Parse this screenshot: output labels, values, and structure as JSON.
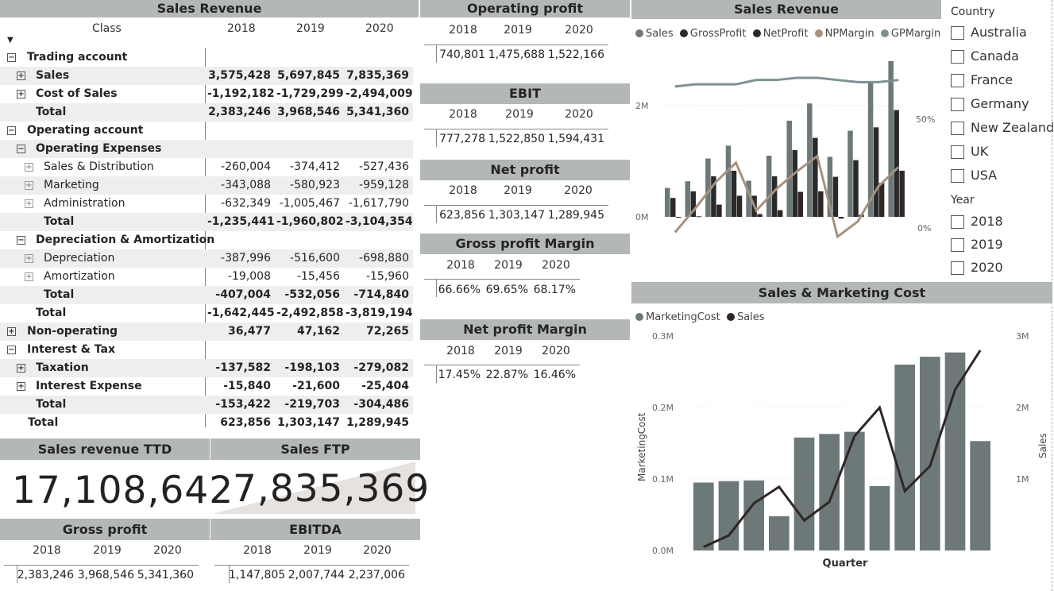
{
  "matrix": {
    "title": "Sales Revenue",
    "class_header": "Class",
    "years": [
      "2018",
      "2019",
      "2020"
    ],
    "rows": [
      {
        "label": "Trading account",
        "indent": 0,
        "expander": "−",
        "bold": true,
        "band": false,
        "vals": [
          "",
          "",
          ""
        ]
      },
      {
        "label": "Sales",
        "indent": 1,
        "expander": "+",
        "bold": true,
        "band": true,
        "vals": [
          "3,575,428",
          "5,697,845",
          "7,835,369"
        ]
      },
      {
        "label": "Cost of Sales",
        "indent": 1,
        "expander": "+",
        "bold": true,
        "band": false,
        "vals": [
          "-1,192,182",
          "-1,729,299",
          "-2,494,009"
        ]
      },
      {
        "label": "Total",
        "indent": 1,
        "expander": "",
        "bold": true,
        "band": true,
        "vals": [
          "2,383,246",
          "3,968,546",
          "5,341,360"
        ]
      },
      {
        "label": "Operating account",
        "indent": 0,
        "expander": "−",
        "bold": true,
        "band": false,
        "vals": [
          "",
          "",
          ""
        ]
      },
      {
        "label": "Operating Expenses",
        "indent": 1,
        "expander": "−",
        "bold": true,
        "band": true,
        "vals": [
          "",
          "",
          ""
        ]
      },
      {
        "label": "Sales & Distribution",
        "indent": 2,
        "expander": "+",
        "bold": false,
        "band": false,
        "vals": [
          "-260,004",
          "-374,412",
          "-527,436"
        ]
      },
      {
        "label": "Marketing",
        "indent": 2,
        "expander": "+",
        "bold": false,
        "band": true,
        "vals": [
          "-343,088",
          "-580,923",
          "-959,128"
        ]
      },
      {
        "label": "Administration",
        "indent": 2,
        "expander": "+",
        "bold": false,
        "band": false,
        "vals": [
          "-632,349",
          "-1,005,467",
          "-1,617,790"
        ]
      },
      {
        "label": "Total",
        "indent": 2,
        "expander": "",
        "bold": true,
        "band": true,
        "vals": [
          "-1,235,441",
          "-1,960,802",
          "-3,104,354"
        ]
      },
      {
        "label": "Depreciation & Amortization",
        "indent": 1,
        "expander": "−",
        "bold": true,
        "band": false,
        "vals": [
          "",
          "",
          ""
        ]
      },
      {
        "label": "Depreciation",
        "indent": 2,
        "expander": "+",
        "bold": false,
        "band": true,
        "vals": [
          "-387,996",
          "-516,600",
          "-698,880"
        ]
      },
      {
        "label": "Amortization",
        "indent": 2,
        "expander": "+",
        "bold": false,
        "band": false,
        "vals": [
          "-19,008",
          "-15,456",
          "-15,960"
        ]
      },
      {
        "label": "Total",
        "indent": 2,
        "expander": "",
        "bold": true,
        "band": true,
        "vals": [
          "-407,004",
          "-532,056",
          "-714,840"
        ]
      },
      {
        "label": "Total",
        "indent": 1,
        "expander": "",
        "bold": true,
        "band": false,
        "vals": [
          "-1,642,445",
          "-2,492,858",
          "-3,819,194"
        ]
      },
      {
        "label": "Non-operating",
        "indent": 0,
        "expander": "+",
        "bold": true,
        "band": true,
        "vals": [
          "36,477",
          "47,162",
          "72,265"
        ]
      },
      {
        "label": "Interest & Tax",
        "indent": 0,
        "expander": "−",
        "bold": true,
        "band": false,
        "vals": [
          "",
          "",
          ""
        ]
      },
      {
        "label": "Taxation",
        "indent": 1,
        "expander": "+",
        "bold": true,
        "band": true,
        "vals": [
          "-137,582",
          "-198,103",
          "-279,082"
        ]
      },
      {
        "label": "Interest Expense",
        "indent": 1,
        "expander": "+",
        "bold": true,
        "band": false,
        "vals": [
          "-15,840",
          "-21,600",
          "-25,404"
        ]
      },
      {
        "label": "Total",
        "indent": 1,
        "expander": "",
        "bold": true,
        "band": true,
        "vals": [
          "-153,422",
          "-219,703",
          "-304,486"
        ]
      },
      {
        "label": "Total",
        "indent": 0,
        "expander": "",
        "bold": true,
        "band": false,
        "vals": [
          "623,856",
          "1,303,147",
          "1,289,945"
        ]
      }
    ]
  },
  "kpis": {
    "operating_profit": {
      "title": "Operating profit",
      "years": [
        "2018",
        "2019",
        "2020"
      ],
      "values": [
        "740,801",
        "1,475,688",
        "1,522,166"
      ]
    },
    "ebit": {
      "title": "EBIT",
      "years": [
        "2018",
        "2019",
        "2020"
      ],
      "values": [
        "777,278",
        "1,522,850",
        "1,594,431"
      ]
    },
    "net_profit": {
      "title": "Net profit",
      "years": [
        "2018",
        "2019",
        "2020"
      ],
      "values": [
        "623,856",
        "1,303,147",
        "1,289,945"
      ]
    },
    "gross_profit_margin": {
      "title": "Gross profit Margin",
      "years": [
        "2018",
        "2019",
        "2020"
      ],
      "values": [
        "66.66%",
        "69.65%",
        "68.17%"
      ]
    },
    "net_profit_margin": {
      "title": "Net profit Margin",
      "years": [
        "2018",
        "2019",
        "2020"
      ],
      "values": [
        "17.45%",
        "22.87%",
        "16.46%"
      ]
    },
    "gross_profit": {
      "title": "Gross profit",
      "years": [
        "2018",
        "2019",
        "2020"
      ],
      "values": [
        "2,383,246",
        "3,968,546",
        "5,341,360"
      ]
    },
    "ebitda": {
      "title": "EBITDA",
      "years": [
        "2018",
        "2019",
        "2020"
      ],
      "values": [
        "1,147,805",
        "2,007,744",
        "2,237,006"
      ]
    }
  },
  "cards": {
    "ttd_title": "Sales revenue TTD",
    "ttd_value": "17,108,642",
    "ftp_title": "Sales FTP",
    "ftp_value": "7,835,369"
  },
  "slicers": {
    "country_title": "Country",
    "countries": [
      "Australia",
      "Canada",
      "France",
      "Germany",
      "New Zealand",
      "UK",
      "USA"
    ],
    "year_title": "Year",
    "years": [
      "2018",
      "2019",
      "2020"
    ]
  },
  "colors": {
    "header_bg": "#b3b8b7",
    "sales": "#6d7879",
    "gross_profit": "#2a2a2a",
    "net_profit": "#2f2626",
    "np_margin": "#a6917f",
    "gp_margin": "#7f9193",
    "marketing_bar": "#6d7879",
    "sales_line": "#2e2626"
  },
  "chart_data": [
    {
      "type": "bar",
      "title": "Sales Revenue",
      "legend": [
        "Sales",
        "GrossProfit",
        "NetProfit",
        "NPMargin",
        "GPMargin"
      ],
      "legend_position": "top-left",
      "y_left_ticks": [
        "0M",
        "2M"
      ],
      "y_right_ticks": [
        "0%",
        "50%"
      ],
      "ylim_left": [
        0,
        3000000
      ],
      "ylim_right": [
        0,
        0.85
      ],
      "series": [
        {
          "name": "Sales",
          "kind": "bar",
          "values": [
            520000,
            640000,
            1050000,
            1280000,
            650000,
            1100000,
            1730000,
            2040000,
            1080000,
            1550000,
            2440000,
            2800000
          ]
        },
        {
          "name": "GrossProfit",
          "kind": "bar",
          "values": [
            340000,
            460000,
            730000,
            830000,
            380000,
            730000,
            1200000,
            1420000,
            720000,
            1020000,
            1610000,
            1920000
          ]
        },
        {
          "name": "NetProfit",
          "kind": "bar",
          "values": [
            -10000,
            10000,
            220000,
            380000,
            50000,
            120000,
            450000,
            460000,
            -30000,
            40000,
            610000,
            830000
          ]
        },
        {
          "name": "NPMargin",
          "kind": "line",
          "values": [
            -0.02,
            0.09,
            0.21,
            0.3,
            0.08,
            0.18,
            0.26,
            0.33,
            -0.04,
            0.03,
            0.19,
            0.28
          ]
        },
        {
          "name": "GPMargin",
          "kind": "line",
          "values": [
            0.65,
            0.66,
            0.66,
            0.66,
            0.68,
            0.68,
            0.69,
            0.69,
            0.68,
            0.67,
            0.67,
            0.68
          ]
        }
      ]
    },
    {
      "type": "bar",
      "title": "Sales & Marketing Cost",
      "legend": [
        "MarketingCost",
        "Sales"
      ],
      "legend_position": "top-left",
      "xlabel": "Quarter",
      "ylabel": "MarketingCost",
      "ylabel_right": "Sales",
      "y_left_ticks": [
        "0.0M",
        "0.1M",
        "0.2M",
        "0.3M"
      ],
      "y_right_ticks": [
        "1M",
        "2M",
        "3M"
      ],
      "ylim_left": [
        0,
        300000
      ],
      "ylim_right": [
        0,
        3000000
      ],
      "series": [
        {
          "name": "MarketingCost",
          "kind": "bar",
          "values": [
            95000,
            97000,
            98000,
            48000,
            158000,
            163000,
            166000,
            90000,
            260000,
            271000,
            277000,
            153000
          ]
        },
        {
          "name": "Sales",
          "kind": "line",
          "values": [
            50000,
            210000,
            660000,
            890000,
            420000,
            680000,
            1600000,
            2000000,
            830000,
            1180000,
            2250000,
            2800000
          ]
        }
      ]
    }
  ]
}
